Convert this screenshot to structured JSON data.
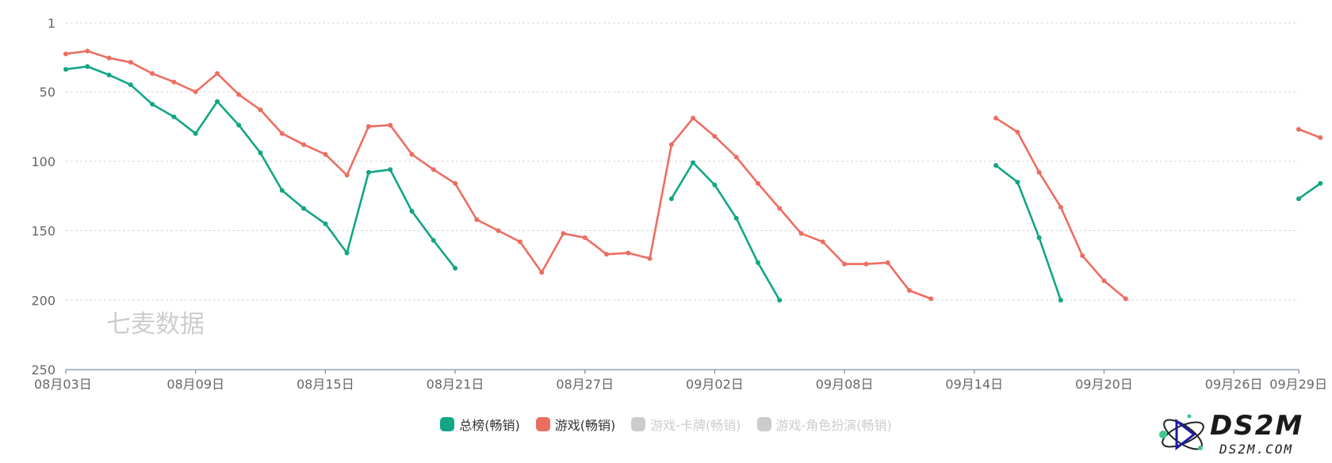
{
  "watermark": "七麦数据",
  "logo": {
    "main": "DS2M",
    "sub": "DS2M.COM"
  },
  "legend": [
    {
      "label": "总榜(畅销)",
      "color": "#12a685",
      "active": true
    },
    {
      "label": "游戏(畅销)",
      "color": "#ec6e61",
      "active": true
    },
    {
      "label": "游戏-卡牌(畅销)",
      "color": "#cccccc",
      "active": false
    },
    {
      "label": "游戏-角色扮演(畅销)",
      "color": "#cccccc",
      "active": false
    }
  ],
  "chart_data": {
    "type": "line",
    "y_inverted": true,
    "ylim": [
      1,
      250
    ],
    "y_ticks": [
      1,
      50,
      100,
      150,
      200,
      250
    ],
    "x_tick_labels": [
      "08月03日",
      "08月09日",
      "08月15日",
      "08月21日",
      "08月27日",
      "09月02日",
      "09月08日",
      "09月14日",
      "09月20日",
      "09月26日",
      "09月29日"
    ],
    "x_tick_days": [
      0,
      6,
      12,
      18,
      24,
      30,
      36,
      42,
      48,
      54,
      57
    ],
    "grid": true,
    "legend_position": "bottom",
    "series": [
      {
        "name": "总榜(畅销)",
        "color": "#12a685",
        "values": [
          34,
          32,
          38,
          45,
          59,
          68,
          80,
          57,
          74,
          94,
          121,
          134,
          145,
          166,
          108,
          106,
          136,
          157,
          177,
          null,
          null,
          null,
          null,
          null,
          null,
          null,
          null,
          null,
          127,
          101,
          117,
          141,
          173,
          200,
          null,
          null,
          null,
          null,
          null,
          null,
          null,
          null,
          null,
          103,
          115,
          155,
          200,
          null,
          null,
          null,
          null,
          null,
          null,
          null,
          null,
          null,
          null,
          127,
          116
        ]
      },
      {
        "name": "游戏(畅销)",
        "color": "#ec6e61",
        "values": [
          23,
          21,
          26,
          29,
          37,
          43,
          50,
          37,
          52,
          63,
          80,
          88,
          95,
          110,
          75,
          74,
          95,
          106,
          116,
          142,
          150,
          158,
          180,
          152,
          155,
          167,
          166,
          170,
          88,
          69,
          82,
          97,
          116,
          134,
          152,
          158,
          174,
          174,
          173,
          193,
          199,
          null,
          null,
          69,
          79,
          108,
          133,
          168,
          186,
          199,
          null,
          null,
          null,
          null,
          null,
          null,
          null,
          77,
          83
        ]
      }
    ]
  }
}
